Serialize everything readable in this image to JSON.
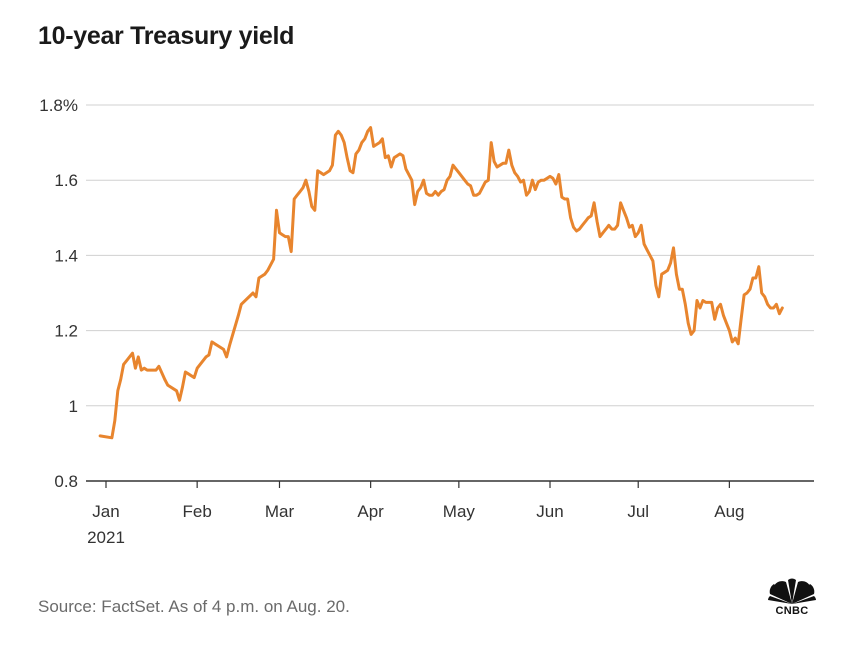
{
  "title": "10-year Treasury yield",
  "source": "Source: FactSet. As of 4 p.m. on Aug. 20.",
  "logo_text": "CNBC",
  "colors": {
    "line": "#e8852e",
    "grid": "#d0d0d0",
    "axis": "#333333"
  },
  "chart_data": {
    "type": "line",
    "title": "10-year Treasury yield",
    "xlabel": "",
    "ylabel": "",
    "ylim": [
      0.8,
      1.8
    ],
    "yticks": [
      {
        "value": 1.8,
        "label": "1.8%"
      },
      {
        "value": 1.6,
        "label": "1.6"
      },
      {
        "value": 1.4,
        "label": "1.4"
      },
      {
        "value": 1.2,
        "label": "1.2"
      },
      {
        "value": 1.0,
        "label": "1"
      },
      {
        "value": 0.8,
        "label": "0.8"
      }
    ],
    "xticks": [
      {
        "day": 0,
        "label": "Jan",
        "sublabel": "2021"
      },
      {
        "day": 31,
        "label": "Feb"
      },
      {
        "day": 59,
        "label": "Mar"
      },
      {
        "day": 90,
        "label": "Apr"
      },
      {
        "day": 120,
        "label": "May"
      },
      {
        "day": 151,
        "label": "Jun"
      },
      {
        "day": 181,
        "label": "Jul"
      },
      {
        "day": 212,
        "label": "Aug"
      }
    ],
    "xlim": [
      0,
      235
    ],
    "series": [
      {
        "name": "10-year Treasury yield",
        "x": [
          -2,
          2,
          3,
          4,
          5,
          6,
          7,
          9,
          10,
          11,
          12,
          13,
          14,
          17,
          18,
          20,
          21,
          24,
          25,
          26,
          27,
          28,
          30,
          31,
          34,
          35,
          36,
          37,
          38,
          40,
          41,
          42,
          45,
          46,
          50,
          51,
          52,
          53,
          54,
          55,
          57,
          58,
          59,
          60,
          61,
          62,
          63,
          64,
          65,
          66,
          67,
          68,
          69,
          70,
          71,
          72,
          73,
          74,
          76,
          77,
          78,
          79,
          80,
          81,
          82,
          83,
          84,
          85,
          86,
          87,
          88,
          89,
          90,
          91,
          92,
          93,
          94,
          95,
          96,
          97,
          98,
          99,
          100,
          101,
          102,
          104,
          105,
          106,
          107,
          108,
          109,
          110,
          111,
          112,
          113,
          114,
          115,
          116,
          117,
          118,
          119,
          120,
          121,
          122,
          123,
          124,
          125,
          126,
          127,
          128,
          129,
          130,
          131,
          132,
          133,
          134,
          135,
          136,
          137,
          138,
          139,
          140,
          141,
          142,
          143,
          144,
          145,
          146,
          147,
          148,
          149,
          150,
          151,
          152,
          153,
          154,
          155,
          156,
          157,
          158,
          159,
          160,
          161,
          162,
          163,
          164,
          165,
          166,
          167,
          168,
          169,
          170,
          171,
          172,
          173,
          174,
          175,
          176,
          177,
          178,
          179,
          180,
          181,
          182,
          183,
          184,
          185,
          186,
          187,
          188,
          189,
          190,
          191,
          192,
          193,
          194,
          195,
          196,
          197,
          198,
          199,
          200,
          201,
          202,
          203,
          204,
          205,
          206,
          207,
          208,
          209,
          210,
          211,
          212,
          213,
          214,
          215,
          216,
          217,
          218,
          219,
          220,
          221,
          222,
          223,
          224,
          225,
          226,
          227,
          228,
          229,
          230
        ],
        "values": [
          0.92,
          0.915,
          0.96,
          1.04,
          1.07,
          1.11,
          1.12,
          1.14,
          1.1,
          1.13,
          1.095,
          1.1,
          1.095,
          1.095,
          1.105,
          1.07,
          1.055,
          1.04,
          1.015,
          1.05,
          1.09,
          1.085,
          1.075,
          1.1,
          1.13,
          1.135,
          1.17,
          1.165,
          1.16,
          1.15,
          1.13,
          1.16,
          1.24,
          1.27,
          1.3,
          1.29,
          1.34,
          1.345,
          1.35,
          1.36,
          1.39,
          1.52,
          1.46,
          1.455,
          1.45,
          1.45,
          1.41,
          1.55,
          1.56,
          1.57,
          1.58,
          1.6,
          1.57,
          1.53,
          1.52,
          1.625,
          1.62,
          1.615,
          1.625,
          1.64,
          1.72,
          1.73,
          1.72,
          1.7,
          1.66,
          1.625,
          1.62,
          1.67,
          1.68,
          1.7,
          1.71,
          1.73,
          1.74,
          1.69,
          1.695,
          1.7,
          1.71,
          1.66,
          1.665,
          1.635,
          1.66,
          1.665,
          1.67,
          1.665,
          1.63,
          1.6,
          1.535,
          1.57,
          1.58,
          1.6,
          1.565,
          1.56,
          1.56,
          1.57,
          1.56,
          1.57,
          1.575,
          1.6,
          1.61,
          1.64,
          1.63,
          1.62,
          1.61,
          1.6,
          1.59,
          1.585,
          1.56,
          1.56,
          1.565,
          1.58,
          1.595,
          1.6,
          1.7,
          1.65,
          1.635,
          1.64,
          1.645,
          1.645,
          1.68,
          1.64,
          1.62,
          1.61,
          1.595,
          1.6,
          1.56,
          1.57,
          1.6,
          1.575,
          1.595,
          1.6,
          1.6,
          1.605,
          1.61,
          1.605,
          1.59,
          1.615,
          1.555,
          1.55,
          1.55,
          1.5,
          1.475,
          1.465,
          1.47,
          1.48,
          1.49,
          1.5,
          1.505,
          1.54,
          1.49,
          1.45,
          1.46,
          1.47,
          1.48,
          1.47,
          1.47,
          1.48,
          1.54,
          1.52,
          1.5,
          1.475,
          1.48,
          1.45,
          1.46,
          1.48,
          1.43,
          1.415,
          1.4,
          1.385,
          1.32,
          1.29,
          1.35,
          1.355,
          1.36,
          1.38,
          1.42,
          1.35,
          1.31,
          1.31,
          1.27,
          1.22,
          1.19,
          1.2,
          1.28,
          1.26,
          1.28,
          1.275,
          1.275,
          1.275,
          1.23,
          1.26,
          1.27,
          1.24,
          1.22,
          1.2,
          1.17,
          1.18,
          1.165,
          1.23,
          1.295,
          1.3,
          1.31,
          1.34,
          1.34,
          1.37,
          1.3,
          1.29,
          1.27,
          1.26,
          1.26,
          1.27,
          1.245,
          1.26
        ]
      }
    ]
  }
}
